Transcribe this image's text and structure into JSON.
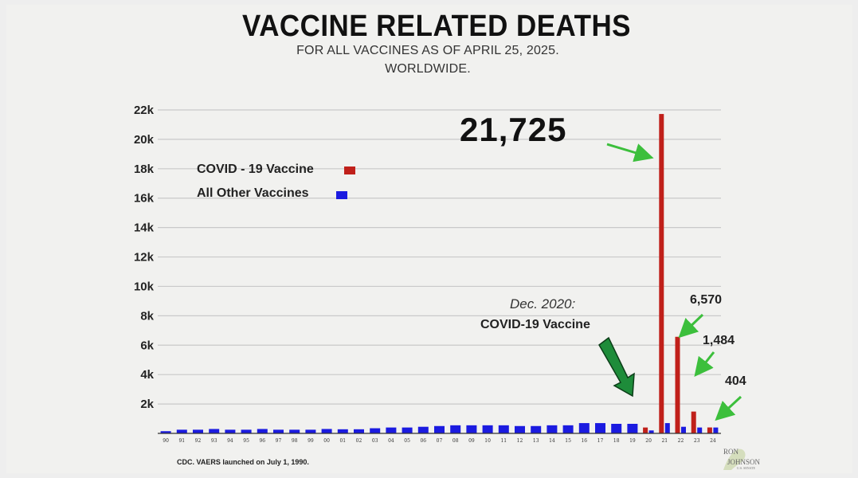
{
  "chart_data": {
    "type": "bar",
    "title": "VACCINE RELATED DEATHS",
    "subtitle": [
      "FOR ALL VACCINES AS OF APRIL 25, 2025.",
      "WORLDWIDE."
    ],
    "categories": [
      "90",
      "91",
      "92",
      "93",
      "94",
      "95",
      "96",
      "97",
      "98",
      "99",
      "00",
      "01",
      "02",
      "03",
      "04",
      "05",
      "06",
      "07",
      "08",
      "09",
      "10",
      "11",
      "12",
      "13",
      "14",
      "15",
      "16",
      "17",
      "18",
      "19",
      "20",
      "21",
      "22",
      "23",
      "24"
    ],
    "series": [
      {
        "name": "COVID - 19 Vaccine",
        "color": "#c0201a",
        "values": [
          0,
          0,
          0,
          0,
          0,
          0,
          0,
          0,
          0,
          0,
          0,
          0,
          0,
          0,
          0,
          0,
          0,
          0,
          0,
          0,
          0,
          0,
          0,
          0,
          0,
          0,
          0,
          0,
          0,
          0,
          400,
          21725,
          6570,
          1484,
          404
        ]
      },
      {
        "name": "All Other Vaccines",
        "color": "#1b1be0",
        "values": [
          150,
          250,
          250,
          300,
          250,
          250,
          300,
          250,
          250,
          250,
          300,
          280,
          280,
          350,
          400,
          400,
          450,
          500,
          550,
          550,
          550,
          550,
          500,
          500,
          550,
          550,
          700,
          700,
          650,
          650,
          200,
          700,
          450,
          400,
          400
        ]
      }
    ],
    "ylim": [
      0,
      22000
    ],
    "yticks": [
      "2k",
      "4k",
      "6k",
      "8k",
      "10k",
      "12k",
      "14k",
      "16k",
      "18k",
      "20k",
      "22k"
    ],
    "xlabel": "",
    "ylabel": "",
    "grid": true,
    "legend_position": "top-left",
    "annotations": {
      "peak": "21,725",
      "c22": "6,570",
      "c23": "1,484",
      "c24": "404",
      "date_label": "Dec. 2020:",
      "vaccine_label": "COVID-19 Vaccine"
    }
  },
  "footer": {
    "source": "CDC. VAERS launched on July 1, 1990.",
    "logo_line1": "RON",
    "logo_line2": "JOHNSON",
    "logo_line3": "U.S. SENATE"
  }
}
